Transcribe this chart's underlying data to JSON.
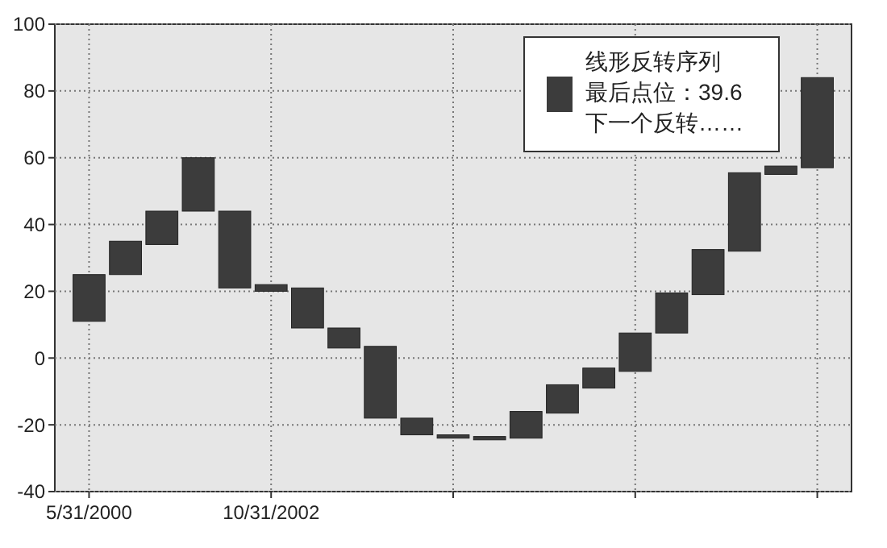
{
  "chart_data": {
    "type": "bar",
    "categories": [
      "5/31/2000",
      null,
      null,
      null,
      null,
      "10/31/2002",
      null,
      null,
      null,
      null,
      null,
      null,
      null,
      null,
      null,
      null,
      null,
      null,
      null,
      null,
      null
    ],
    "series": [
      {
        "name": "线形反转序列",
        "color": "#3c3c3c",
        "base": [
          11,
          25,
          34,
          44,
          21,
          20,
          9,
          3,
          -18,
          -23,
          -24,
          -24.5,
          -24,
          -16.5,
          -9,
          -4,
          7.5,
          19,
          32,
          55,
          57
        ],
        "values": [
          14,
          10,
          10,
          16,
          23,
          2,
          12,
          6,
          21.5,
          5,
          1,
          1,
          8,
          8.5,
          6,
          11.5,
          12,
          13.5,
          23.5,
          2.5,
          27
        ]
      }
    ],
    "annotations": [
      "最后点位：39.6",
      "下一个反转……"
    ],
    "ylim": [
      -40,
      100
    ],
    "yticks": [
      -40,
      -20,
      0,
      20,
      40,
      60,
      80,
      100
    ],
    "grid": true,
    "legend": "top right"
  }
}
